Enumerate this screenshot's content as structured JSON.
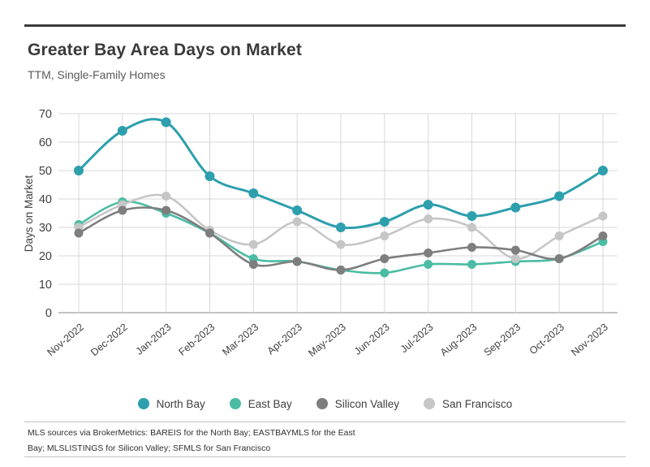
{
  "header": {
    "title": "Greater Bay Area Days on Market",
    "subtitle": "TTM, Single-Family Homes"
  },
  "chart_data": {
    "type": "line",
    "title": "Greater Bay Area Days on Market",
    "subtitle": "TTM, Single-Family Homes",
    "xlabel": "",
    "ylabel": "Days on Market",
    "ylim": [
      0,
      70
    ],
    "ytick_interval": 10,
    "yticks": [
      0,
      10,
      20,
      30,
      40,
      50,
      60,
      70
    ],
    "grid": true,
    "legend_position": "bottom",
    "line_style": "smooth",
    "marker": "circle",
    "categories": [
      "Nov-2022",
      "Dec-2022",
      "Jan-2023",
      "Feb-2023",
      "Mar-2023",
      "Apr-2023",
      "May-2023",
      "Jun-2023",
      "Jul-2023",
      "Aug-2023",
      "Sep-2023",
      "Oct-2023",
      "Nov-2023"
    ],
    "series": [
      {
        "name": "North Bay",
        "color": "#2D9FAD",
        "values": [
          50,
          64,
          67,
          48,
          42,
          36,
          30,
          32,
          38,
          34,
          37,
          41,
          50
        ]
      },
      {
        "name": "East Bay",
        "color": "#4BBCA4",
        "values": [
          31,
          39,
          35,
          28,
          19,
          18,
          15,
          14,
          17,
          17,
          18,
          19,
          25
        ]
      },
      {
        "name": "Silicon Valley",
        "color": "#7E7E7E",
        "values": [
          28,
          36,
          36,
          28,
          17,
          18,
          15,
          19,
          21,
          23,
          22,
          19,
          27
        ]
      },
      {
        "name": "San Francisco",
        "color": "#C6C6C6",
        "values": [
          30,
          38,
          41,
          29,
          24,
          32,
          24,
          27,
          33,
          30,
          19,
          27,
          34
        ]
      }
    ],
    "colors": {
      "grid": "#d7d7d7",
      "axis": "#9e9e9e",
      "tick_text": "#3f3f3f",
      "accent_rule": "#3a3a3a"
    }
  },
  "footer": {
    "line1": "MLS sources via BrokerMetrics: BAREIS for the North Bay; EASTBAYMLS for the East",
    "line2": "Bay; MLSLISTINGS for Silicon Valley; SFMLS for San Francisco"
  }
}
